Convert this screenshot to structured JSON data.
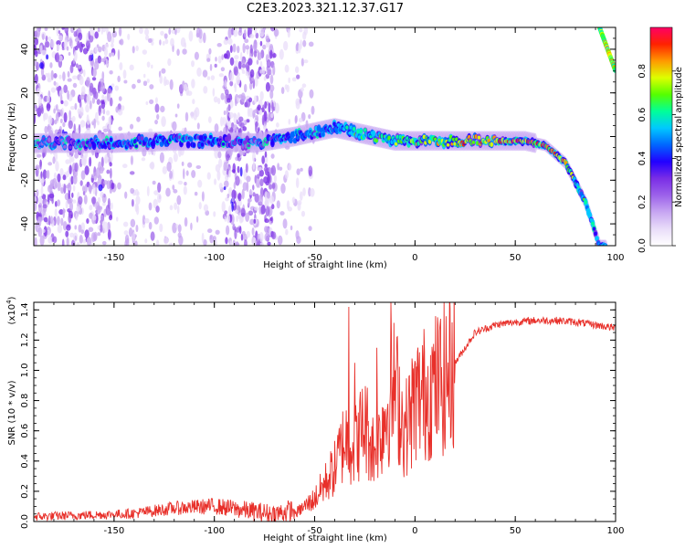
{
  "colors": {
    "snr_line": "#e8302a",
    "axis": "#000000",
    "colormap": [
      "#ffffff",
      "#e9ddf9",
      "#c7a6f2",
      "#9c62ea",
      "#7a2ee6",
      "#2200ff",
      "#0066ff",
      "#00c8ff",
      "#00ff99",
      "#55ff00",
      "#ddff00",
      "#ff9900",
      "#ff2200",
      "#ff0066"
    ]
  },
  "chart_data": [
    {
      "type": "heatmap",
      "title": "C2E3.2023.321.12.37.G17",
      "xlabel": "Height of straight line (km)",
      "ylabel": "Frequency (Hz)",
      "xlim": [
        -190,
        100
      ],
      "ylim": [
        -50,
        50
      ],
      "xticks": [
        -150,
        -100,
        -50,
        0,
        50,
        100
      ],
      "yticks": [
        -40,
        -20,
        0,
        20,
        40
      ],
      "colorbar": {
        "label": "Normalized spectral amplitude",
        "range": [
          0,
          1
        ],
        "ticks": [
          "0.0",
          "0.2",
          "0.4",
          "0.6",
          "0.8"
        ]
      },
      "ridge": [
        {
          "x": -190,
          "f": -3,
          "amp": 0.3
        },
        {
          "x": -150,
          "f": -3,
          "amp": 0.4
        },
        {
          "x": -120,
          "f": -2,
          "amp": 0.45
        },
        {
          "x": -100,
          "f": -2,
          "amp": 0.4
        },
        {
          "x": -80,
          "f": -3,
          "amp": 0.3
        },
        {
          "x": -60,
          "f": 0,
          "amp": 0.45
        },
        {
          "x": -40,
          "f": 4,
          "amp": 0.5
        },
        {
          "x": -25,
          "f": 1,
          "amp": 0.65
        },
        {
          "x": -10,
          "f": -2,
          "amp": 0.7
        },
        {
          "x": 10,
          "f": -2,
          "amp": 0.75
        },
        {
          "x": 30,
          "f": -2,
          "amp": 0.85
        },
        {
          "x": 55,
          "f": -2,
          "amp": 0.95
        },
        {
          "x": 65,
          "f": -4,
          "amp": 0.9
        },
        {
          "x": 75,
          "f": -12,
          "amp": 0.8
        },
        {
          "x": 85,
          "f": -30,
          "amp": 0.6
        },
        {
          "x": 92,
          "f": -50,
          "amp": 0.5
        }
      ],
      "alias_branch": [
        {
          "x": 92,
          "f": 50
        },
        {
          "x": 100,
          "f": 30
        }
      ]
    },
    {
      "type": "line",
      "xlabel": "Height of straight line (km)",
      "ylabel": "SNR (10 * v/v)",
      "y_multiplier": "(x10",
      "y_multiplier_exp": "4",
      "xlim": [
        -190,
        100
      ],
      "ylim": [
        0,
        1.45
      ],
      "xticks": [
        -150,
        -100,
        -50,
        0,
        50,
        100
      ],
      "yticks": [
        "0.0",
        "0.2",
        "0.4",
        "0.6",
        "0.8",
        "1.0",
        "1.2",
        "1.4"
      ],
      "series": [
        {
          "x": [
            -190,
            -140,
            -120,
            -100,
            -90,
            -70,
            -60,
            -50,
            -40,
            -35,
            -30,
            -25,
            -20,
            -15,
            -10,
            -5,
            0,
            5,
            10,
            15,
            20,
            25,
            30,
            40,
            50,
            60,
            70,
            80,
            90,
            100
          ],
          "values": [
            0.02,
            0.04,
            0.07,
            0.08,
            0.06,
            0.02,
            0.05,
            0.15,
            0.35,
            0.55,
            0.5,
            0.65,
            0.45,
            0.7,
            0.9,
            0.6,
            0.8,
            0.85,
            0.9,
            0.95,
            1.05,
            1.15,
            1.25,
            1.3,
            1.32,
            1.33,
            1.33,
            1.32,
            1.3,
            1.28
          ],
          "peaks": [
            {
              "x": -33,
              "value": 1.42
            },
            {
              "x": -12,
              "value": 1.45
            },
            {
              "x": -19,
              "value": 1.15
            },
            {
              "x": -30,
              "value": 1.05
            },
            {
              "x": 15,
              "value": 0.48
            }
          ]
        }
      ]
    }
  ]
}
